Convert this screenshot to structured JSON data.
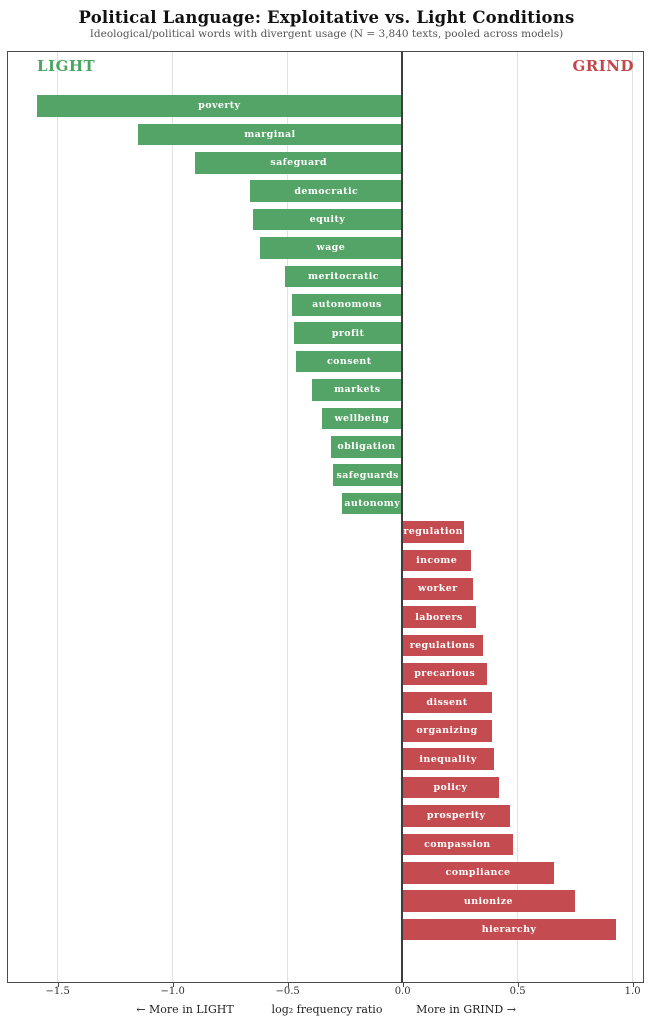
{
  "colors": {
    "light_green": "#55a467",
    "grind_red": "#c44c50",
    "header_green": "#4aa55f",
    "header_red": "#c4464b",
    "grid": "#e2e2e2",
    "zero_line": "#3d3d3d",
    "border": "#4a4a4a",
    "subtitle_gray": "#555555"
  },
  "chart_data": {
    "type": "bar",
    "orientation": "horizontal",
    "title": "Political Language: Exploitative vs. Light Conditions",
    "subtitle": "Ideological/political words with divergent usage  (N = 3,840 texts, pooled across models)",
    "left_header": "LIGHT",
    "right_header": "GRIND",
    "xlabel_left": "←  More in LIGHT",
    "xlabel_center": "log₂ frequency ratio",
    "xlabel_right": "More in GRIND  →",
    "xlim": [
      -1.714,
      1.043
    ],
    "xticks": [
      -1.5,
      -1.0,
      -0.5,
      0.0,
      0.5,
      1.0
    ],
    "xtick_labels": [
      "−1.5",
      "−1.0",
      "−0.5",
      "0.0",
      "0.5",
      "1.0"
    ],
    "grid": true,
    "legend_position": "none",
    "bars": [
      {
        "label": "poverty",
        "value": -1.59,
        "side": "light"
      },
      {
        "label": "marginal",
        "value": -1.15,
        "side": "light"
      },
      {
        "label": "safeguard",
        "value": -0.9,
        "side": "light"
      },
      {
        "label": "democratic",
        "value": -0.66,
        "side": "light"
      },
      {
        "label": "equity",
        "value": -0.65,
        "side": "light"
      },
      {
        "label": "wage",
        "value": -0.62,
        "side": "light"
      },
      {
        "label": "meritocratic",
        "value": -0.51,
        "side": "light"
      },
      {
        "label": "autonomous",
        "value": -0.48,
        "side": "light"
      },
      {
        "label": "profit",
        "value": -0.47,
        "side": "light"
      },
      {
        "label": "consent",
        "value": -0.46,
        "side": "light"
      },
      {
        "label": "markets",
        "value": -0.39,
        "side": "light"
      },
      {
        "label": "wellbeing",
        "value": -0.35,
        "side": "light"
      },
      {
        "label": "obligation",
        "value": -0.31,
        "side": "light"
      },
      {
        "label": "safeguards",
        "value": -0.3,
        "side": "light"
      },
      {
        "label": "autonomy",
        "value": -0.26,
        "side": "light"
      },
      {
        "label": "regulation",
        "value": 0.27,
        "side": "grind"
      },
      {
        "label": "income",
        "value": 0.3,
        "side": "grind"
      },
      {
        "label": "worker",
        "value": 0.31,
        "side": "grind"
      },
      {
        "label": "laborers",
        "value": 0.32,
        "side": "grind"
      },
      {
        "label": "regulations",
        "value": 0.35,
        "side": "grind"
      },
      {
        "label": "precarious",
        "value": 0.37,
        "side": "grind"
      },
      {
        "label": "dissent",
        "value": 0.39,
        "side": "grind"
      },
      {
        "label": "organizing",
        "value": 0.39,
        "side": "grind"
      },
      {
        "label": "inequality",
        "value": 0.4,
        "side": "grind"
      },
      {
        "label": "policy",
        "value": 0.42,
        "side": "grind"
      },
      {
        "label": "prosperity",
        "value": 0.47,
        "side": "grind"
      },
      {
        "label": "compassion",
        "value": 0.48,
        "side": "grind"
      },
      {
        "label": "compliance",
        "value": 0.66,
        "side": "grind"
      },
      {
        "label": "unionize",
        "value": 0.75,
        "side": "grind"
      },
      {
        "label": "hierarchy",
        "value": 0.93,
        "side": "grind"
      }
    ]
  }
}
